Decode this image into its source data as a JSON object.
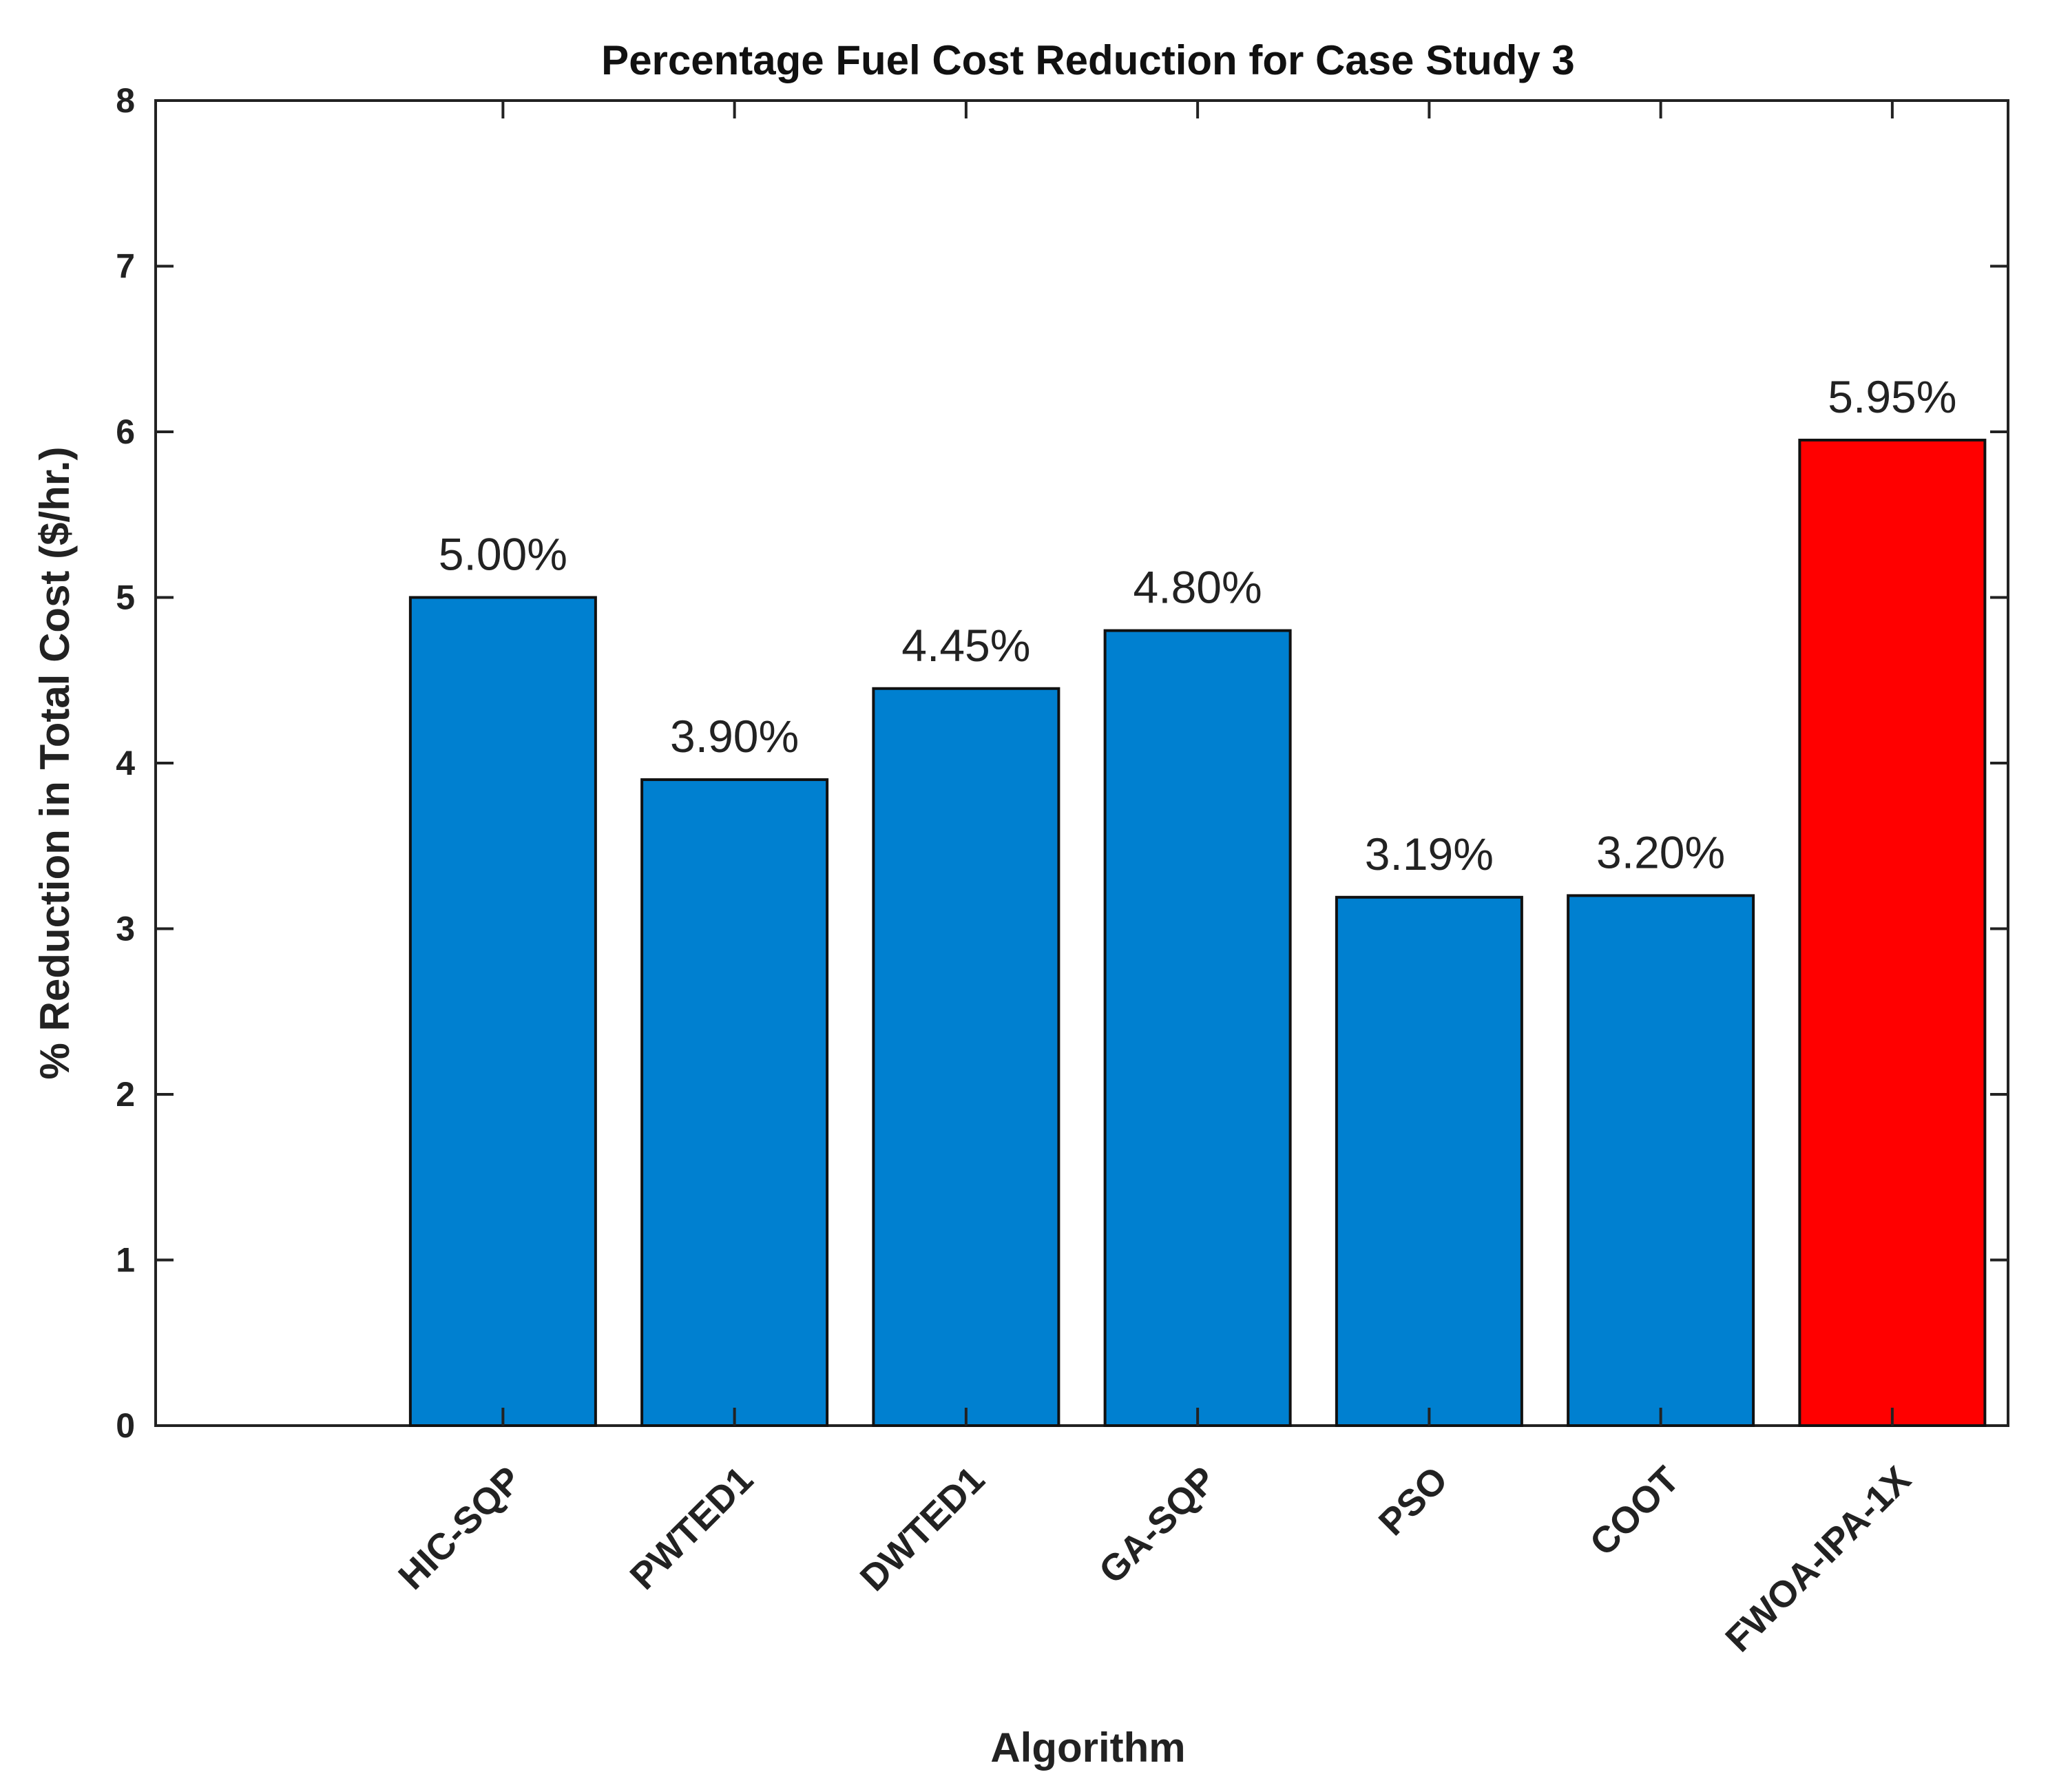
{
  "chart_data": {
    "type": "bar",
    "title": "Percentage Fuel Cost Reduction for Case Study 3",
    "xlabel": "Algorithm",
    "ylabel": "% Reduction in Total Cost ($/hr.)",
    "ylim": [
      0,
      8
    ],
    "yticks": [
      "0",
      "1",
      "2",
      "3",
      "4",
      "5",
      "6",
      "7",
      "8"
    ],
    "grid": false,
    "categories": [
      "HIC-SQP",
      "PWTED1",
      "DWTED1",
      "GA-SQP",
      "PSO",
      "COOT",
      "FWOA-IPA-1X"
    ],
    "values": [
      5.0,
      3.9,
      4.45,
      4.8,
      3.19,
      3.2,
      5.95
    ],
    "data_labels": [
      "5.00%",
      "3.90%",
      "4.45%",
      "4.80%",
      "3.19%",
      "3.20%",
      "5.95%"
    ],
    "colors": [
      "#0080d0",
      "#0080d0",
      "#0080d0",
      "#0080d0",
      "#0080d0",
      "#0080d0",
      "#ff0000"
    ],
    "edge_color": "#111111"
  }
}
